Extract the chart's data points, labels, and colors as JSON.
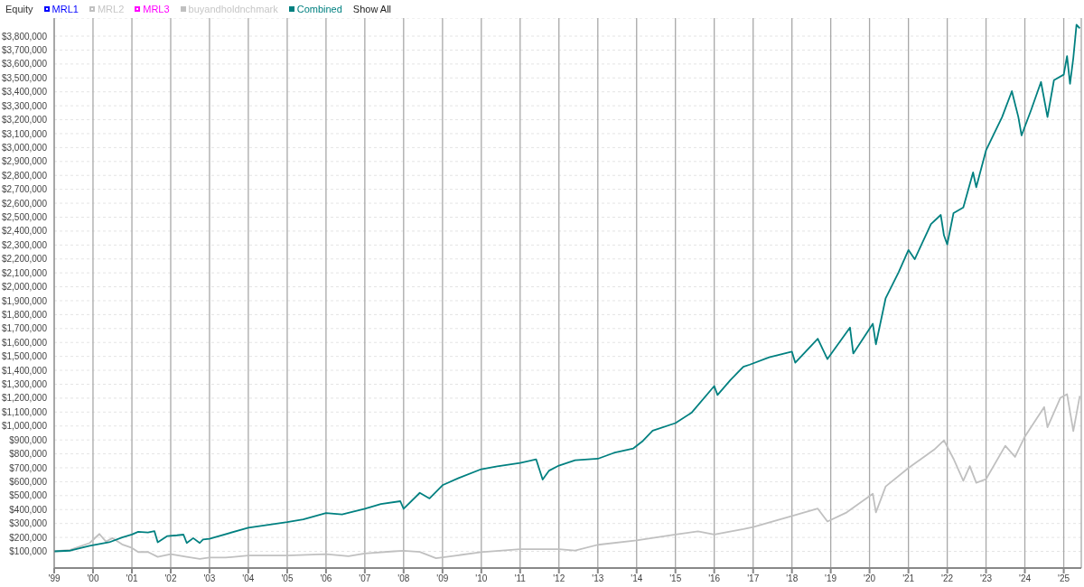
{
  "chart_data": {
    "type": "line",
    "title": "Equity",
    "annotations": [
      "Show All"
    ],
    "legend": "top left",
    "grid": true,
    "marker": "none",
    "line_style": "solid",
    "xlim": [
      "1999-01",
      "2025-06-15"
    ],
    "xticks": [
      {
        "value": "1999",
        "label": "'99"
      },
      {
        "value": "2000",
        "label": "'00"
      },
      {
        "value": "2001",
        "label": "'01"
      },
      {
        "value": "2002",
        "label": "'02"
      },
      {
        "value": "2003",
        "label": "'03"
      },
      {
        "value": "2004",
        "label": "'04"
      },
      {
        "value": "2005",
        "label": "'05"
      },
      {
        "value": "2006",
        "label": "'06"
      },
      {
        "value": "2007",
        "label": "'07"
      },
      {
        "value": "2008",
        "label": "'08"
      },
      {
        "value": "2009",
        "label": "'09"
      },
      {
        "value": "2010",
        "label": "'10"
      },
      {
        "value": "2011",
        "label": "'11"
      },
      {
        "value": "2012",
        "label": "'12"
      },
      {
        "value": "2013",
        "label": "'13"
      },
      {
        "value": "2014",
        "label": "'14"
      },
      {
        "value": "2015",
        "label": "'15"
      },
      {
        "value": "2016",
        "label": "'16"
      },
      {
        "value": "2017",
        "label": "'17"
      },
      {
        "value": "2018",
        "label": "'18"
      },
      {
        "value": "2019",
        "label": "'19"
      },
      {
        "value": "2020",
        "label": "'20"
      },
      {
        "value": "2021",
        "label": "'21"
      },
      {
        "value": "2022",
        "label": "'22"
      },
      {
        "value": "2023",
        "label": "'23"
      },
      {
        "value": "2024",
        "label": "'24"
      },
      {
        "value": "2025",
        "label": "'25"
      }
    ],
    "ylim": [
      -20000,
      3930000
    ],
    "yticks": [
      {
        "value": 100000,
        "label": "$100,000"
      },
      {
        "value": 200000,
        "label": "$200,000"
      },
      {
        "value": 300000,
        "label": "$300,000"
      },
      {
        "value": 400000,
        "label": "$400,000"
      },
      {
        "value": 500000,
        "label": "$500,000"
      },
      {
        "value": 600000,
        "label": "$600,000"
      },
      {
        "value": 700000,
        "label": "$700,000"
      },
      {
        "value": 800000,
        "label": "$800,000"
      },
      {
        "value": 900000,
        "label": "$900,000"
      },
      {
        "value": 1000000,
        "label": "$1,000,000"
      },
      {
        "value": 1100000,
        "label": "$1,100,000"
      },
      {
        "value": 1200000,
        "label": "$1,200,000"
      },
      {
        "value": 1300000,
        "label": "$1,300,000"
      },
      {
        "value": 1400000,
        "label": "$1,400,000"
      },
      {
        "value": 1500000,
        "label": "$1,500,000"
      },
      {
        "value": 1600000,
        "label": "$1,600,000"
      },
      {
        "value": 1700000,
        "label": "$1,700,000"
      },
      {
        "value": 1800000,
        "label": "$1,800,000"
      },
      {
        "value": 1900000,
        "label": "$1,900,000"
      },
      {
        "value": 2000000,
        "label": "$2,000,000"
      },
      {
        "value": 2100000,
        "label": "$2,100,000"
      },
      {
        "value": 2200000,
        "label": "$2,200,000"
      },
      {
        "value": 2300000,
        "label": "$2,300,000"
      },
      {
        "value": 2400000,
        "label": "$2,400,000"
      },
      {
        "value": 2500000,
        "label": "$2,500,000"
      },
      {
        "value": 2600000,
        "label": "$2,600,000"
      },
      {
        "value": 2700000,
        "label": "$2,700,000"
      },
      {
        "value": 2800000,
        "label": "$2,800,000"
      },
      {
        "value": 2900000,
        "label": "$2,900,000"
      },
      {
        "value": 3000000,
        "label": "$3,000,000"
      },
      {
        "value": 3100000,
        "label": "$3,100,000"
      },
      {
        "value": 3200000,
        "label": "$3,200,000"
      },
      {
        "value": 3300000,
        "label": "$3,300,000"
      },
      {
        "value": 3400000,
        "label": "$3,400,000"
      },
      {
        "value": 3500000,
        "label": "$3,500,000"
      },
      {
        "value": 3600000,
        "label": "$3,600,000"
      },
      {
        "value": 3700000,
        "label": "$3,700,000"
      },
      {
        "value": 3800000,
        "label": "$3,800,000"
      }
    ],
    "series": [
      {
        "name": "MRL1",
        "color": "#0000ff"
      },
      {
        "name": "MRL2",
        "color": "#c0c0c0"
      },
      {
        "name": "MRL3",
        "color": "#ff00ff"
      },
      {
        "name": "buyandholdnchmark",
        "color": "#c0c0c0",
        "x": [
          "1999-01",
          "1999-06",
          "1999-12",
          "2000-03",
          "2000-05",
          "2000-07",
          "2000-10",
          "2001-01",
          "2001-03",
          "2001-06",
          "2001-09",
          "2002-01",
          "2002-06",
          "2002-10",
          "2003-01",
          "2003-06",
          "2004-01",
          "2005-01",
          "2006-01",
          "2006-08",
          "2007-01",
          "2007-10",
          "2008-01",
          "2008-06",
          "2008-11",
          "2009-06",
          "2010-01",
          "2011-01",
          "2012-01",
          "2012-06",
          "2013-01",
          "2014-01",
          "2015-01",
          "2015-08",
          "2016-01",
          "2016-10",
          "2017-01",
          "2018-01",
          "2018-09",
          "2018-12",
          "2019-06",
          "2020-02",
          "2020-03",
          "2020-06",
          "2021-01",
          "2021-09",
          "2021-12",
          "2022-03",
          "2022-06",
          "2022-08",
          "2022-10",
          "2023-01",
          "2023-07",
          "2023-10",
          "2024-01",
          "2024-07",
          "2024-08",
          "2024-12",
          "2025-02",
          "2025-04",
          "2025-06"
        ],
        "values": [
          100000,
          110000,
          160000,
          225000,
          170000,
          195000,
          150000,
          125000,
          95000,
          95000,
          60000,
          80000,
          60000,
          45000,
          55000,
          55000,
          70000,
          70000,
          80000,
          65000,
          85000,
          100000,
          104000,
          96000,
          51000,
          72000,
          94000,
          115000,
          115000,
          105000,
          147000,
          179000,
          221000,
          243000,
          221000,
          260000,
          275000,
          354000,
          407000,
          314000,
          380000,
          513000,
          380000,
          566000,
          698000,
          831000,
          897000,
          765000,
          606000,
          712000,
          592000,
          619000,
          858000,
          778000,
          924000,
          1136000,
          991000,
          1203000,
          1229000,
          964000,
          1216000
        ]
      },
      {
        "name": "Combined",
        "color": "#008080",
        "x": [
          "1999-01",
          "1999-06",
          "1999-12",
          "2000-06",
          "2000-10",
          "2001-01",
          "2001-03",
          "2001-06",
          "2001-08",
          "2001-09",
          "2001-12",
          "2002-03",
          "2002-05",
          "2002-06",
          "2002-08",
          "2002-10",
          "2002-11",
          "2003-01",
          "2004-01",
          "2005-01",
          "2005-06",
          "2006-01",
          "2006-06",
          "2007-01",
          "2007-06",
          "2007-12",
          "2008-01",
          "2008-06",
          "2008-09",
          "2009-01",
          "2009-06",
          "2010-01",
          "2010-06",
          "2011-01",
          "2011-06",
          "2011-08",
          "2011-10",
          "2012-01",
          "2012-06",
          "2013-01",
          "2013-06",
          "2013-12",
          "2014-03",
          "2014-06",
          "2015-01",
          "2015-06",
          "2016-01",
          "2016-02",
          "2016-06",
          "2016-10",
          "2016-12",
          "2017-06",
          "2018-01",
          "2018-02",
          "2018-09",
          "2018-12",
          "2019-07",
          "2019-08",
          "2020-02",
          "2020-03",
          "2020-06",
          "2020-10",
          "2021-01",
          "2021-03",
          "2021-08",
          "2021-11",
          "2021-12",
          "2022-01",
          "2022-03",
          "2022-06",
          "2022-09",
          "2022-10",
          "2023-01",
          "2023-06",
          "2023-09",
          "2023-11",
          "2023-12",
          "2024-03",
          "2024-06",
          "2024-08",
          "2024-10",
          "2025-01",
          "2025-02",
          "2025-03",
          "2025-04",
          "2025-05",
          "2025-06"
        ],
        "values": [
          100000,
          105000,
          140000,
          165000,
          200000,
          221000,
          240000,
          235000,
          245000,
          165000,
          210000,
          215000,
          220000,
          160000,
          195000,
          160000,
          185000,
          190000,
          270000,
          310000,
          330000,
          375000,
          365000,
          405000,
          440000,
          460000,
          405000,
          520000,
          480000,
          575000,
          626000,
          690000,
          711000,
          735000,
          760000,
          615000,
          680000,
          716000,
          754000,
          765000,
          807000,
          839000,
          893000,
          967000,
          1021000,
          1095000,
          1287000,
          1223000,
          1330000,
          1425000,
          1441000,
          1494000,
          1534000,
          1455000,
          1627000,
          1481000,
          1707000,
          1521000,
          1734000,
          1587000,
          1919000,
          2105000,
          2264000,
          2198000,
          2450000,
          2516000,
          2370000,
          2304000,
          2529000,
          2570000,
          2821000,
          2715000,
          2980000,
          3219000,
          3405000,
          3219000,
          3087000,
          3272000,
          3471000,
          3219000,
          3484000,
          3524000,
          3657000,
          3458000,
          3643000,
          3882000,
          3856000
        ]
      }
    ]
  }
}
